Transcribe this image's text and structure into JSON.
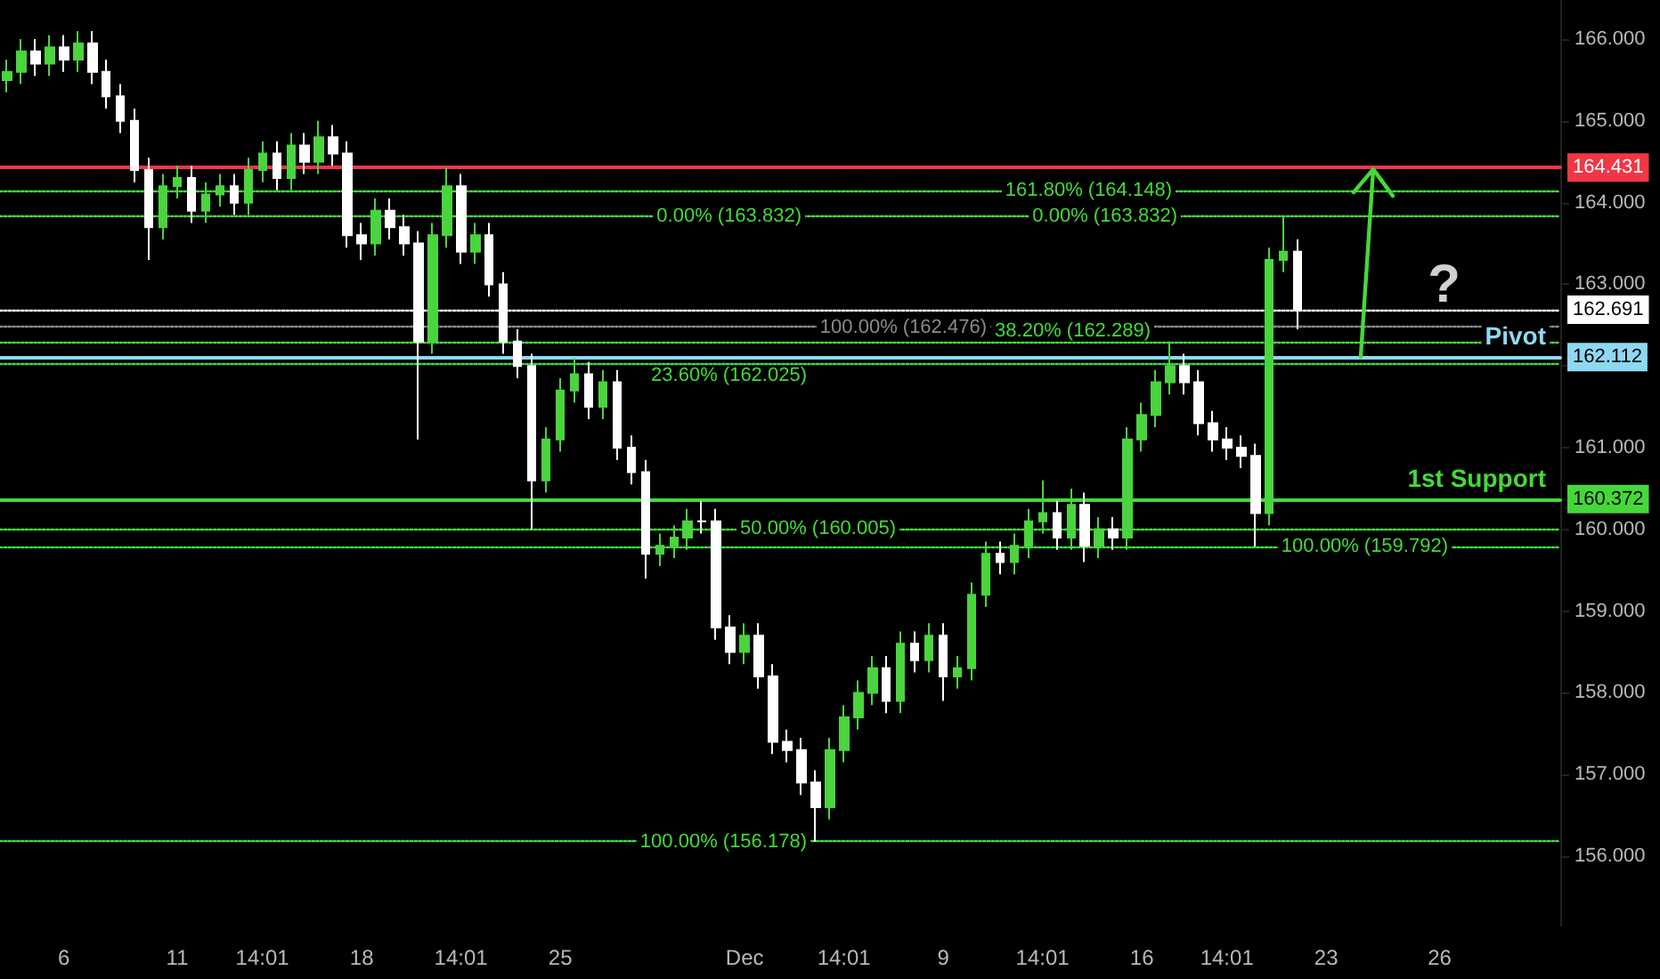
{
  "chart_data": {
    "type": "candlestick",
    "categories": [
      null,
      null,
      null,
      null,
      "6",
      null,
      null,
      null,
      null,
      null,
      null,
      null,
      "11",
      null,
      null,
      null,
      null,
      null,
      "14:01",
      null,
      null,
      null,
      null,
      null,
      null,
      "18",
      null,
      null,
      null,
      null,
      null,
      null,
      "14:01",
      null,
      null,
      null,
      null,
      null,
      null,
      "25",
      null,
      null,
      null,
      null,
      null,
      null,
      null,
      null,
      null,
      null,
      null,
      null,
      "Dec",
      null,
      null,
      null,
      null,
      null,
      null,
      "14:01",
      null,
      null,
      null,
      null,
      null,
      null,
      "9",
      null,
      null,
      null,
      null,
      null,
      null,
      "14:01",
      null,
      null,
      null,
      null,
      null,
      null,
      "16",
      null,
      null,
      null,
      null,
      null,
      "14:01",
      null,
      null,
      null,
      null,
      null,
      null,
      "23",
      null,
      null,
      null,
      null,
      null,
      null,
      null,
      "26",
      null,
      null,
      null,
      null,
      null,
      null,
      null,
      null
    ],
    "ohlc": [
      [
        165.5,
        165.75,
        165.35,
        165.6
      ],
      [
        165.6,
        166.0,
        165.45,
        165.85
      ],
      [
        165.85,
        166.0,
        165.55,
        165.7
      ],
      [
        165.7,
        166.05,
        165.55,
        165.9
      ],
      [
        165.9,
        166.05,
        165.6,
        165.75
      ],
      [
        165.75,
        166.1,
        165.6,
        165.95
      ],
      [
        165.95,
        166.1,
        165.45,
        165.6
      ],
      [
        165.6,
        165.75,
        165.15,
        165.3
      ],
      [
        165.3,
        165.45,
        164.85,
        165.0
      ],
      [
        165.0,
        165.15,
        164.25,
        164.4
      ],
      [
        164.4,
        164.55,
        163.3,
        163.7
      ],
      [
        163.7,
        164.35,
        163.55,
        164.2
      ],
      [
        164.2,
        164.45,
        164.05,
        164.3
      ],
      [
        164.3,
        164.45,
        163.75,
        163.9
      ],
      [
        163.9,
        164.25,
        163.75,
        164.1
      ],
      [
        164.1,
        164.35,
        163.95,
        164.2
      ],
      [
        164.2,
        164.35,
        163.85,
        164.0
      ],
      [
        164.0,
        164.55,
        163.85,
        164.4
      ],
      [
        164.4,
        164.75,
        164.25,
        164.6
      ],
      [
        164.6,
        164.75,
        164.15,
        164.3
      ],
      [
        164.3,
        164.85,
        164.15,
        164.7
      ],
      [
        164.7,
        164.85,
        164.35,
        164.5
      ],
      [
        164.5,
        165.0,
        164.35,
        164.8
      ],
      [
        164.8,
        164.95,
        164.45,
        164.6
      ],
      [
        164.6,
        164.75,
        163.45,
        163.6
      ],
      [
        163.6,
        163.75,
        163.3,
        163.5
      ],
      [
        163.5,
        164.05,
        163.35,
        163.9
      ],
      [
        163.9,
        164.05,
        163.55,
        163.7
      ],
      [
        163.7,
        163.85,
        163.35,
        163.5
      ],
      [
        163.5,
        163.65,
        161.1,
        162.3
      ],
      [
        162.3,
        163.75,
        162.15,
        163.6
      ],
      [
        163.6,
        164.43,
        163.45,
        164.2
      ],
      [
        164.2,
        164.35,
        163.25,
        163.4
      ],
      [
        163.4,
        163.75,
        163.25,
        163.6
      ],
      [
        163.6,
        163.75,
        162.85,
        163.0
      ],
      [
        163.0,
        163.15,
        162.15,
        162.3
      ],
      [
        162.3,
        162.45,
        161.85,
        162.0
      ],
      [
        162.0,
        162.15,
        160.0,
        160.6
      ],
      [
        160.6,
        161.25,
        160.45,
        161.1
      ],
      [
        161.1,
        161.85,
        160.95,
        161.7
      ],
      [
        161.7,
        162.1,
        161.55,
        161.9
      ],
      [
        161.9,
        162.05,
        161.35,
        161.5
      ],
      [
        161.5,
        161.95,
        161.35,
        161.8
      ],
      [
        161.8,
        161.95,
        160.85,
        161.0
      ],
      [
        161.0,
        161.15,
        160.55,
        160.7
      ],
      [
        160.7,
        160.85,
        159.4,
        159.7
      ],
      [
        159.7,
        159.95,
        159.55,
        159.8
      ],
      [
        159.8,
        160.05,
        159.65,
        159.9
      ],
      [
        159.9,
        160.25,
        159.75,
        160.1
      ],
      [
        160.1,
        160.35,
        159.95,
        160.1
      ],
      [
        160.1,
        160.25,
        158.65,
        158.8
      ],
      [
        158.8,
        158.95,
        158.35,
        158.5
      ],
      [
        158.5,
        158.85,
        158.35,
        158.7
      ],
      [
        158.7,
        158.85,
        158.05,
        158.2
      ],
      [
        158.2,
        158.35,
        157.25,
        157.4
      ],
      [
        157.4,
        157.55,
        157.15,
        157.3
      ],
      [
        157.3,
        157.45,
        156.75,
        156.9
      ],
      [
        156.9,
        157.05,
        156.178,
        156.6
      ],
      [
        156.6,
        157.45,
        156.45,
        157.3
      ],
      [
        157.3,
        157.85,
        157.15,
        157.7
      ],
      [
        157.7,
        158.15,
        157.55,
        158.0
      ],
      [
        158.0,
        158.45,
        157.85,
        158.3
      ],
      [
        158.3,
        158.45,
        157.75,
        157.9
      ],
      [
        157.9,
        158.75,
        157.75,
        158.6
      ],
      [
        158.6,
        158.75,
        158.25,
        158.4
      ],
      [
        158.4,
        158.85,
        158.25,
        158.7
      ],
      [
        158.7,
        158.85,
        157.9,
        158.2
      ],
      [
        158.2,
        158.45,
        158.05,
        158.3
      ],
      [
        158.3,
        159.35,
        158.15,
        159.2
      ],
      [
        159.2,
        159.85,
        159.05,
        159.7
      ],
      [
        159.7,
        159.85,
        159.45,
        159.6
      ],
      [
        159.6,
        159.95,
        159.45,
        159.8
      ],
      [
        159.8,
        160.25,
        159.65,
        160.1
      ],
      [
        160.1,
        160.6,
        159.95,
        160.2
      ],
      [
        160.2,
        160.35,
        159.75,
        159.9
      ],
      [
        159.9,
        160.5,
        159.75,
        160.3
      ],
      [
        160.3,
        160.45,
        159.6,
        159.8
      ],
      [
        159.8,
        160.15,
        159.65,
        160.0
      ],
      [
        160.0,
        160.15,
        159.75,
        159.9
      ],
      [
        159.9,
        161.25,
        159.75,
        161.1
      ],
      [
        161.1,
        161.55,
        160.95,
        161.4
      ],
      [
        161.4,
        161.95,
        161.25,
        161.8
      ],
      [
        161.8,
        162.3,
        161.65,
        162.0
      ],
      [
        162.0,
        162.15,
        161.65,
        161.8
      ],
      [
        161.8,
        161.95,
        161.15,
        161.3
      ],
      [
        161.3,
        161.45,
        160.95,
        161.1
      ],
      [
        161.1,
        161.25,
        160.85,
        161.0
      ],
      [
        161.0,
        161.15,
        160.75,
        160.9
      ],
      [
        160.9,
        161.05,
        159.792,
        160.2
      ],
      [
        160.2,
        163.45,
        160.05,
        163.3
      ],
      [
        163.3,
        163.832,
        163.15,
        163.4
      ],
      [
        163.4,
        163.55,
        162.45,
        162.691
      ],
      null,
      null,
      null,
      null,
      null,
      null,
      null,
      null,
      null,
      null,
      null,
      null,
      null,
      null,
      null,
      null,
      null,
      null
    ],
    "colors": [
      "#4ad43e",
      "#4ad43e",
      "#ffffff",
      "#4ad43e",
      "#ffffff",
      "#4ad43e",
      "#ffffff",
      "#ffffff",
      "#ffffff",
      "#ffffff",
      "#ffffff",
      "#4ad43e",
      "#4ad43e",
      "#ffffff",
      "#4ad43e",
      "#4ad43e",
      "#ffffff",
      "#4ad43e",
      "#4ad43e",
      "#ffffff",
      "#4ad43e",
      "#ffffff",
      "#4ad43e",
      "#ffffff",
      "#ffffff",
      "#ffffff",
      "#4ad43e",
      "#ffffff",
      "#ffffff",
      "#ffffff",
      "#4ad43e",
      "#4ad43e",
      "#ffffff",
      "#4ad43e",
      "#ffffff",
      "#ffffff",
      "#ffffff",
      "#ffffff",
      "#4ad43e",
      "#4ad43e",
      "#4ad43e",
      "#ffffff",
      "#4ad43e",
      "#ffffff",
      "#ffffff",
      "#ffffff",
      "#4ad43e",
      "#4ad43e",
      "#4ad43e",
      "#ffffff",
      "#ffffff",
      "#ffffff",
      "#4ad43e",
      "#ffffff",
      "#ffffff",
      "#ffffff",
      "#ffffff",
      "#ffffff",
      "#4ad43e",
      "#4ad43e",
      "#4ad43e",
      "#4ad43e",
      "#ffffff",
      "#4ad43e",
      "#ffffff",
      "#4ad43e",
      "#ffffff",
      "#4ad43e",
      "#4ad43e",
      "#4ad43e",
      "#ffffff",
      "#4ad43e",
      "#4ad43e",
      "#4ad43e",
      "#ffffff",
      "#4ad43e",
      "#ffffff",
      "#4ad43e",
      "#ffffff",
      "#4ad43e",
      "#4ad43e",
      "#4ad43e",
      "#4ad43e",
      "#ffffff",
      "#ffffff",
      "#ffffff",
      "#ffffff",
      "#ffffff",
      "#ffffff",
      "#4ad43e",
      "#4ad43e",
      "#ffffff",
      null,
      null,
      null,
      null,
      null,
      null,
      null,
      null,
      null,
      null,
      null,
      null,
      null,
      null,
      null,
      null,
      null,
      null
    ],
    "ylim": [
      155.15,
      166.48
    ],
    "yticks": [
      {
        "value": 156,
        "label": "156.000"
      },
      {
        "value": 157,
        "label": "157.000"
      },
      {
        "value": 158,
        "label": "158.000"
      },
      {
        "value": 159,
        "label": "159.000"
      },
      {
        "value": 160,
        "label": "160.000"
      },
      {
        "value": 161,
        "label": "161.000"
      },
      {
        "value": 162,
        "label": null
      },
      {
        "value": 163,
        "label": "163.000"
      },
      {
        "value": 164,
        "label": "164.000"
      },
      {
        "value": 165,
        "label": "165.000"
      },
      {
        "value": 166,
        "label": "166.000"
      }
    ],
    "ref_lines": [
      {
        "axis": "y",
        "value": 164.431,
        "label": "164.431",
        "color": "#f23645",
        "line_style": "solid"
      },
      {
        "axis": "y",
        "value": 162.691,
        "label": "162.691",
        "color": "#ffffff",
        "line_style": "dotted"
      },
      {
        "axis": "y",
        "value": 162.112,
        "label": "162.112",
        "color": "#8fd8f2",
        "line_style": "solid"
      },
      {
        "axis": "y",
        "value": 160.372,
        "label": "160.372",
        "color": "#45d83a",
        "line_style": "solid"
      },
      {
        "axis": "y",
        "value": 164.148,
        "color": "#45d83a",
        "line_style": "dotted"
      },
      {
        "axis": "y",
        "value": 163.832,
        "color": "#45d83a",
        "line_style": "dotted"
      },
      {
        "axis": "y",
        "value": 162.476,
        "color": "#8a8a8a",
        "line_style": "dotted"
      },
      {
        "axis": "y",
        "value": 162.289,
        "color": "#45d83a",
        "line_style": "dotted"
      },
      {
        "axis": "y",
        "value": 162.025,
        "color": "#45d83a",
        "line_style": "dotted"
      },
      {
        "axis": "y",
        "value": 160.005,
        "color": "#45d83a",
        "line_style": "dotted"
      },
      {
        "axis": "y",
        "value": 159.792,
        "color": "#45d83a",
        "line_style": "dotted"
      },
      {
        "axis": "y",
        "value": 156.178,
        "color": "#45d83a",
        "line_style": "dotted"
      }
    ],
    "annotations": [
      {
        "text": "161.80% (164.148)",
        "y": 164.148
      },
      {
        "text": "0.00% (163.832)",
        "y": 163.832
      },
      {
        "text": "0.00% (163.832)",
        "y": 163.832
      },
      {
        "text": "100.00% (162.476)",
        "y": 162.476
      },
      {
        "text": "38.20% (162.289)",
        "y": 162.289
      },
      {
        "text": "23.60% (162.025)",
        "y": 162.025
      },
      {
        "text": "50.00% (160.005)",
        "y": 160.005
      },
      {
        "text": "100.00% (159.792)",
        "y": 159.792
      },
      {
        "text": "100.00% (156.178)",
        "y": 156.178
      },
      {
        "text": "Pivot",
        "y": 162.112
      },
      {
        "text": "1st Support",
        "y": 160.372
      },
      {
        "text": "?",
        "y": 164.431
      }
    ],
    "grid": false
  }
}
